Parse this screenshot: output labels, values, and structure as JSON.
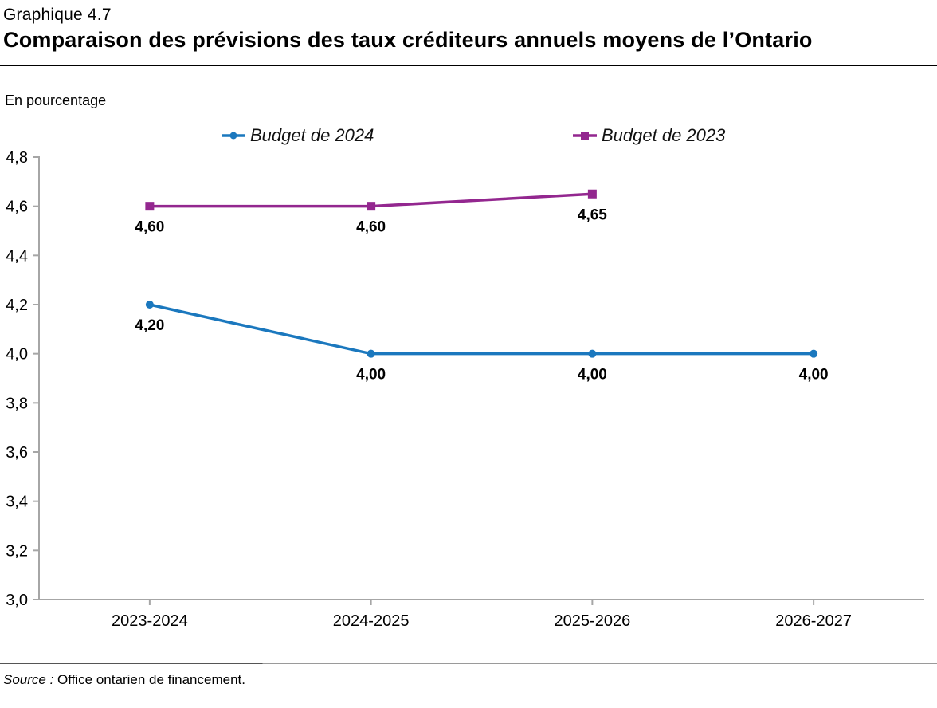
{
  "header": {
    "chart_number": "Graphique 4.7",
    "title": "Comparaison des prévisions des taux créditeurs annuels moyens de l’Ontario"
  },
  "unit_label": "En pourcentage",
  "source": {
    "prefix": "Source :",
    "text": " Office ontarien de financement."
  },
  "colors": {
    "axis": "#A6A6A6",
    "budget_2024": "#1B78BE",
    "budget_2023": "#93278F",
    "text": "#000000"
  },
  "chart_data": {
    "type": "line",
    "title": "Comparaison des prévisions des taux créditeurs annuels moyens de l’Ontario",
    "categories": [
      "2023-2024",
      "2024-2025",
      "2025-2026",
      "2026-2027"
    ],
    "series": [
      {
        "name": "Budget de 2024",
        "color": "#1B78BE",
        "marker": "circle",
        "values": [
          4.2,
          4.0,
          4.0,
          4.0
        ],
        "labels": [
          "4,20",
          "4,00",
          "4,00",
          "4,00"
        ]
      },
      {
        "name": "Budget de 2023",
        "color": "#93278F",
        "marker": "square",
        "values": [
          4.6,
          4.6,
          4.65,
          null
        ],
        "labels": [
          "4,60",
          "4,60",
          "4,65",
          ""
        ]
      }
    ],
    "ylabel": "En pourcentage",
    "ylim": [
      3.0,
      4.8
    ],
    "ytick_step": 0.2,
    "ytick_labels": [
      "3,0",
      "3,2",
      "3,4",
      "3,6",
      "3,8",
      "4,0",
      "4,2",
      "4,4",
      "4,6",
      "4,8"
    ],
    "grid": false,
    "legend_position": "top"
  }
}
